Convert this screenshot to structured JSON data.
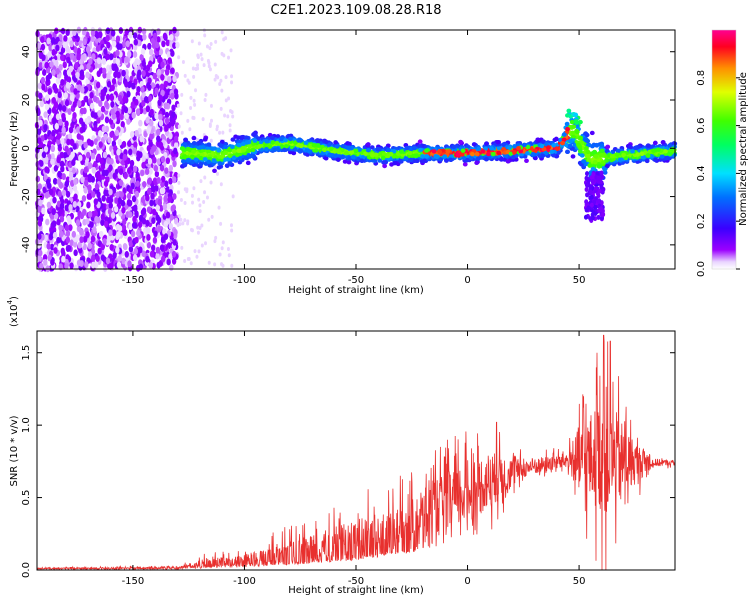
{
  "title": "C2E1.2023.109.08.28.R18",
  "colors": {
    "snr_line": "#e8302e",
    "tick": "#000000"
  },
  "chart_data": [
    {
      "type": "heatmap",
      "xlabel": "Height of straight line (km)",
      "ylabel": "Frequency (Hz)",
      "xlim": [
        -193,
        93
      ],
      "ylim": [
        -50,
        49
      ],
      "x_ticks": [
        -150,
        -100,
        -50,
        0,
        50
      ],
      "x_tick_labels": [
        "-150",
        "-100",
        "-50",
        "0",
        "50"
      ],
      "y_ticks": [
        -40,
        -20,
        0,
        20,
        40
      ],
      "y_tick_labels": [
        "-40",
        "-20",
        "0",
        "20",
        "40"
      ],
      "colorbar": {
        "label": "Normalized spectral amplitude",
        "range": [
          0,
          1
        ],
        "ticks": [
          0.0,
          0.2,
          0.4,
          0.6,
          0.8
        ],
        "tick_labels": [
          "0.0",
          "0.2",
          "0.4",
          "0.6",
          "0.8"
        ],
        "colormap": "gist_rainbow_reversed"
      },
      "ridge": [
        {
          "x": -125,
          "f": -2
        },
        {
          "x": -110,
          "f": -3
        },
        {
          "x": -95,
          "f": 1
        },
        {
          "x": -80,
          "f": 2
        },
        {
          "x": -60,
          "f": -1
        },
        {
          "x": -40,
          "f": -3
        },
        {
          "x": -20,
          "f": -2
        },
        {
          "x": 0,
          "f": -2
        },
        {
          "x": 20,
          "f": -1
        },
        {
          "x": 40,
          "f": 0
        },
        {
          "x": 47,
          "f": 8
        },
        {
          "x": 55,
          "f": -5
        },
        {
          "x": 70,
          "f": -3
        },
        {
          "x": 93,
          "f": -1
        }
      ]
    },
    {
      "type": "line",
      "xlabel": "Height of straight line (km)",
      "ylabel": "SNR (10 * v/v)",
      "y_multiplier": "(x10",
      "y_multiplier_exp": "4",
      "y_multiplier_close": ")",
      "xlim": [
        -193,
        93
      ],
      "ylim": [
        0,
        1.65
      ],
      "x_ticks": [
        -150,
        -100,
        -50,
        0,
        50
      ],
      "x_tick_labels": [
        "-150",
        "-100",
        "-50",
        "0",
        "50"
      ],
      "y_ticks": [
        0.0,
        0.5,
        1.0,
        1.5
      ],
      "y_tick_labels": [
        "0.0",
        "0.5",
        "1.0",
        "1.5"
      ],
      "envelope": [
        {
          "x": -193,
          "base": 0.01,
          "amp": 0.01
        },
        {
          "x": -130,
          "base": 0.01,
          "amp": 0.02
        },
        {
          "x": -120,
          "base": 0.03,
          "amp": 0.08
        },
        {
          "x": -100,
          "base": 0.05,
          "amp": 0.12
        },
        {
          "x": -75,
          "base": 0.1,
          "amp": 0.25
        },
        {
          "x": -50,
          "base": 0.17,
          "amp": 0.35
        },
        {
          "x": -25,
          "base": 0.3,
          "amp": 0.4
        },
        {
          "x": -5,
          "base": 0.5,
          "amp": 0.45
        },
        {
          "x": 10,
          "base": 0.62,
          "amp": 0.4
        },
        {
          "x": 25,
          "base": 0.7,
          "amp": 0.12
        },
        {
          "x": 45,
          "base": 0.76,
          "amp": 0.1
        },
        {
          "x": 50,
          "base": 0.75,
          "amp": 0.5
        },
        {
          "x": 62,
          "base": 0.78,
          "amp": 0.85
        },
        {
          "x": 75,
          "base": 0.74,
          "amp": 0.3
        },
        {
          "x": 83,
          "base": 0.74,
          "amp": 0.06
        },
        {
          "x": 93,
          "base": 0.74,
          "amp": 0.03
        }
      ],
      "peaks": [
        {
          "x": 61,
          "y": 1.62
        },
        {
          "x": 64,
          "y": 1.58
        },
        {
          "x": 58,
          "y": 1.5
        },
        {
          "x": 13,
          "y": 1.02
        },
        {
          "x": 52,
          "y": 1.2
        }
      ]
    }
  ]
}
